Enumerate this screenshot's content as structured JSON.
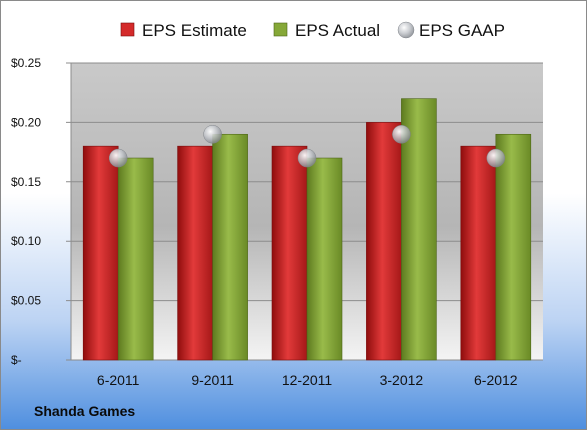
{
  "company_label": "Shanda Games",
  "chart_data": {
    "type": "bar",
    "categories": [
      "6-2011",
      "9-2011",
      "12-2011",
      "3-2012",
      "6-2012"
    ],
    "series": [
      {
        "name": "EPS Estimate",
        "kind": "bar",
        "color": "#d42a2a",
        "values": [
          0.18,
          0.18,
          0.18,
          0.2,
          0.18
        ]
      },
      {
        "name": "EPS Actual",
        "kind": "bar",
        "color": "#86a838",
        "values": [
          0.17,
          0.19,
          0.17,
          0.22,
          0.19
        ]
      },
      {
        "name": "EPS GAAP",
        "kind": "marker",
        "color": "#b9bcc2",
        "values": [
          0.17,
          0.19,
          0.17,
          0.19,
          0.17
        ]
      }
    ],
    "y_ticks": [
      {
        "value": 0.25,
        "label": "$0.25"
      },
      {
        "value": 0.2,
        "label": "$0.20"
      },
      {
        "value": 0.15,
        "label": "$0.15"
      },
      {
        "value": 0.1,
        "label": "$0.10"
      },
      {
        "value": 0.05,
        "label": "$0.05"
      },
      {
        "value": 0,
        "label": "$-"
      }
    ],
    "ylim": [
      0,
      0.25
    ],
    "grid": true,
    "legend_position": "top"
  }
}
